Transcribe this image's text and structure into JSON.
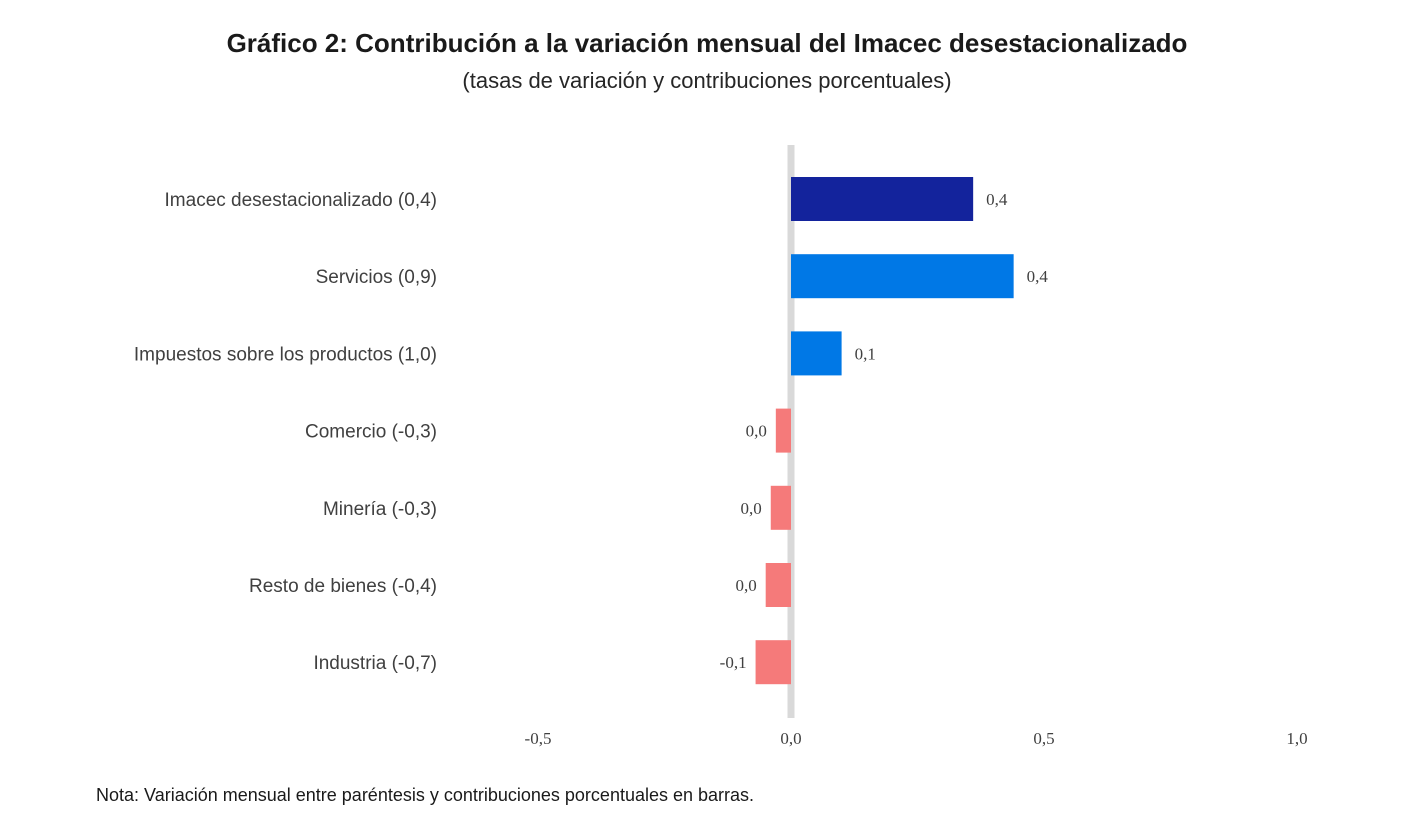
{
  "chart_data": {
    "type": "bar",
    "orientation": "horizontal",
    "title": "Gráfico 2: Contribución a la variación mensual del Imacec desestacionalizado",
    "subtitle": "(tasas de variación y contribuciones porcentuales)",
    "categories": [
      "Imacec desestacionalizado (0,4)",
      "Servicios (0,9)",
      "Impuestos sobre los productos (1,0)",
      "Comercio (-0,3)",
      "Minería (-0,3)",
      "Resto de bienes (-0,4)",
      "Industria (-0,7)"
    ],
    "values": [
      0.36,
      0.44,
      0.1,
      -0.03,
      -0.04,
      -0.05,
      -0.07
    ],
    "value_labels": [
      "0,4",
      "0,4",
      "0,1",
      "0,0",
      "0,0",
      "0,0",
      "-0,1"
    ],
    "bar_colors": [
      "#13239c",
      "#0078e6",
      "#0078e6",
      "#f57a7a",
      "#f57a7a",
      "#f57a7a",
      "#f57a7a"
    ],
    "xlim": [
      -0.5,
      1.0
    ],
    "xticks": [
      -0.5,
      0.0,
      0.5,
      1.0
    ],
    "xtick_labels": [
      "-0,5",
      "0,0",
      "0,5",
      "1,0"
    ],
    "zero_line_color": "#d9d9d9",
    "grid": false,
    "legend": "none",
    "note": "Nota: Variación mensual entre paréntesis y contribuciones porcentuales en barras."
  }
}
